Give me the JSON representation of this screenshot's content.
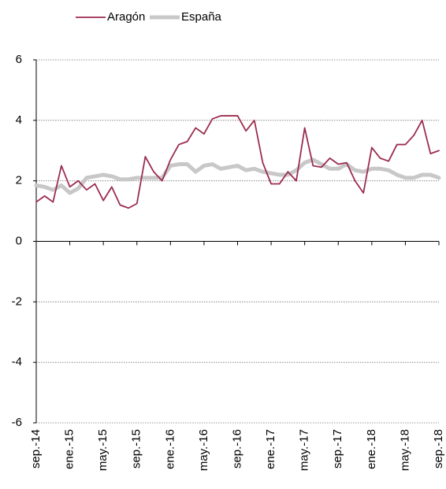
{
  "chart_data": {
    "type": "line",
    "categories": [
      "sep.-14",
      null,
      null,
      null,
      "ene.-15",
      null,
      null,
      null,
      "may.-15",
      null,
      null,
      null,
      "sep.-15",
      null,
      null,
      null,
      "ene.-16",
      null,
      null,
      null,
      "may.-16",
      null,
      null,
      null,
      "sep.-16",
      null,
      null,
      null,
      "ene.-17",
      null,
      null,
      null,
      "may.-17",
      null,
      null,
      null,
      "sep.-17",
      null,
      null,
      null,
      "ene.-18",
      null,
      null,
      null,
      "may.-18",
      null,
      null,
      null,
      "sep.-18"
    ],
    "series": [
      {
        "name": "Aragón",
        "color": "#9b2d4f",
        "values": [
          1.3,
          1.5,
          1.3,
          2.5,
          1.8,
          2.0,
          1.7,
          1.9,
          1.35,
          1.8,
          1.2,
          1.1,
          1.25,
          2.8,
          2.3,
          2.0,
          2.7,
          3.2,
          3.3,
          3.75,
          3.55,
          4.05,
          4.15,
          4.15,
          4.15,
          3.65,
          4.0,
          2.6,
          1.9,
          1.9,
          2.3,
          2.0,
          3.75,
          2.5,
          2.45,
          2.75,
          2.55,
          2.6,
          2.0,
          1.6,
          3.1,
          2.75,
          2.65,
          3.2,
          3.2,
          3.5,
          4.0,
          2.9,
          3.0
        ]
      },
      {
        "name": "España",
        "color": "#c8c8c8",
        "values": [
          1.85,
          1.8,
          1.7,
          1.85,
          1.6,
          1.75,
          2.1,
          2.15,
          2.2,
          2.15,
          2.05,
          2.05,
          2.1,
          2.1,
          2.1,
          2.1,
          2.5,
          2.55,
          2.55,
          2.3,
          2.5,
          2.55,
          2.4,
          2.45,
          2.5,
          2.35,
          2.4,
          2.3,
          2.25,
          2.2,
          2.2,
          2.35,
          2.6,
          2.7,
          2.55,
          2.4,
          2.4,
          2.55,
          2.35,
          2.3,
          2.4,
          2.4,
          2.35,
          2.2,
          2.1,
          2.1,
          2.2,
          2.2,
          2.1
        ]
      }
    ],
    "ylim": [
      -6,
      6
    ],
    "yticks": [
      -6,
      -4,
      -2,
      0,
      2,
      4,
      6
    ],
    "grid": true
  }
}
